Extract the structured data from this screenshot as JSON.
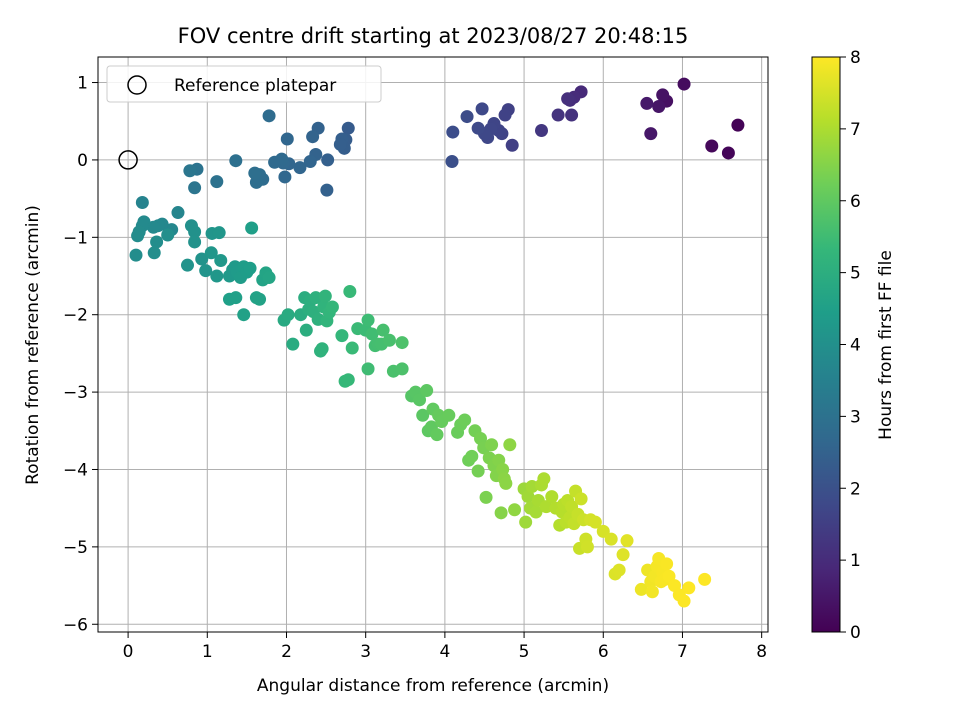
{
  "chart_data": {
    "type": "scatter",
    "title": "FOV centre drift starting at 2023/08/27 20:48:15",
    "xlabel": "Angular distance from reference (arcmin)",
    "ylabel": "Rotation from reference (arcmin)",
    "xlim": [
      -0.38,
      8.08
    ],
    "ylim": [
      -6.1,
      1.33
    ],
    "xticks": [
      0,
      1,
      2,
      3,
      4,
      5,
      6,
      7,
      8
    ],
    "yticks": [
      1,
      0,
      -1,
      -2,
      -3,
      -4,
      -5,
      -6
    ],
    "grid": true,
    "legend": {
      "location": "upper-left",
      "entries": [
        {
          "label": "Reference platepar",
          "marker": "open-circle"
        }
      ]
    },
    "reference_point": {
      "x": 0,
      "y": 0
    },
    "colorbar": {
      "label": "Hours from first FF file",
      "colormap": "viridis",
      "range": [
        0,
        8
      ],
      "ticks": [
        0,
        1,
        2,
        3,
        4,
        5,
        6,
        7,
        8
      ],
      "colors": [
        "#440154",
        "#482878",
        "#3e4989",
        "#31688e",
        "#26828e",
        "#1f9e89",
        "#35b779",
        "#6ece58",
        "#b5de2b",
        "#fde725"
      ]
    },
    "points": [
      {
        "x": 7.7,
        "y": 0.45,
        "h": 0.05
      },
      {
        "x": 7.58,
        "y": 0.09,
        "h": 0.1
      },
      {
        "x": 7.37,
        "y": 0.18,
        "h": 0.15
      },
      {
        "x": 7.02,
        "y": 0.98,
        "h": 0.25
      },
      {
        "x": 6.8,
        "y": 0.76,
        "h": 0.35
      },
      {
        "x": 6.75,
        "y": 0.84,
        "h": 0.4
      },
      {
        "x": 6.7,
        "y": 0.69,
        "h": 0.45
      },
      {
        "x": 6.6,
        "y": 0.34,
        "h": 0.5
      },
      {
        "x": 6.55,
        "y": 0.73,
        "h": 0.55
      },
      {
        "x": 5.72,
        "y": 0.88,
        "h": 0.95
      },
      {
        "x": 5.63,
        "y": 0.81,
        "h": 1.0
      },
      {
        "x": 5.58,
        "y": 0.77,
        "h": 1.05
      },
      {
        "x": 5.55,
        "y": 0.79,
        "h": 1.1
      },
      {
        "x": 5.6,
        "y": 0.58,
        "h": 1.15
      },
      {
        "x": 5.43,
        "y": 0.58,
        "h": 1.2
      },
      {
        "x": 5.22,
        "y": 0.38,
        "h": 1.3
      },
      {
        "x": 4.85,
        "y": 0.19,
        "h": 1.5
      },
      {
        "x": 4.8,
        "y": 0.65,
        "h": 1.55
      },
      {
        "x": 4.76,
        "y": 0.58,
        "h": 1.6
      },
      {
        "x": 4.72,
        "y": 0.34,
        "h": 1.62
      },
      {
        "x": 4.68,
        "y": 0.38,
        "h": 1.65
      },
      {
        "x": 4.62,
        "y": 0.47,
        "h": 1.68
      },
      {
        "x": 4.58,
        "y": 0.4,
        "h": 1.7
      },
      {
        "x": 4.54,
        "y": 0.29,
        "h": 1.72
      },
      {
        "x": 4.5,
        "y": 0.34,
        "h": 1.75
      },
      {
        "x": 4.47,
        "y": 0.66,
        "h": 1.78
      },
      {
        "x": 4.42,
        "y": 0.41,
        "h": 1.8
      },
      {
        "x": 4.28,
        "y": 0.56,
        "h": 1.85
      },
      {
        "x": 4.1,
        "y": 0.36,
        "h": 1.9
      },
      {
        "x": 4.09,
        "y": -0.02,
        "h": 1.95
      },
      {
        "x": 2.78,
        "y": 0.41,
        "h": 2.3
      },
      {
        "x": 2.75,
        "y": 0.26,
        "h": 2.35
      },
      {
        "x": 2.73,
        "y": 0.15,
        "h": 2.38
      },
      {
        "x": 2.7,
        "y": 0.27,
        "h": 2.4
      },
      {
        "x": 2.68,
        "y": 0.2,
        "h": 2.42
      },
      {
        "x": 2.52,
        "y": 0.0,
        "h": 2.45
      },
      {
        "x": 2.51,
        "y": -0.39,
        "h": 2.48
      },
      {
        "x": 2.4,
        "y": 0.41,
        "h": 2.5
      },
      {
        "x": 2.37,
        "y": 0.07,
        "h": 2.52
      },
      {
        "x": 2.33,
        "y": 0.3,
        "h": 2.55
      },
      {
        "x": 2.3,
        "y": -0.02,
        "h": 2.58
      },
      {
        "x": 2.17,
        "y": -0.1,
        "h": 2.6
      },
      {
        "x": 2.03,
        "y": -0.05,
        "h": 2.62
      },
      {
        "x": 2.01,
        "y": 0.27,
        "h": 2.65
      },
      {
        "x": 1.98,
        "y": -0.22,
        "h": 2.68
      },
      {
        "x": 1.96,
        "y": -0.04,
        "h": 2.7
      },
      {
        "x": 1.94,
        "y": 0.01,
        "h": 2.72
      },
      {
        "x": 1.85,
        "y": -0.03,
        "h": 2.75
      },
      {
        "x": 1.78,
        "y": 0.57,
        "h": 2.8
      },
      {
        "x": 1.7,
        "y": -0.25,
        "h": 2.82
      },
      {
        "x": 1.66,
        "y": -0.19,
        "h": 2.85
      },
      {
        "x": 1.62,
        "y": -0.29,
        "h": 2.88
      },
      {
        "x": 1.6,
        "y": -0.17,
        "h": 2.9
      },
      {
        "x": 1.36,
        "y": -0.01,
        "h": 2.95
      },
      {
        "x": 1.12,
        "y": -0.28,
        "h": 3.0
      },
      {
        "x": 0.87,
        "y": -0.12,
        "h": 3.05
      },
      {
        "x": 0.84,
        "y": -0.36,
        "h": 3.1
      },
      {
        "x": 0.78,
        "y": -0.14,
        "h": 3.15
      },
      {
        "x": 0.18,
        "y": -0.55,
        "h": 3.6
      },
      {
        "x": 0.63,
        "y": -0.68,
        "h": 3.65
      },
      {
        "x": 0.55,
        "y": -0.9,
        "h": 3.7
      },
      {
        "x": 0.43,
        "y": -0.83,
        "h": 3.72
      },
      {
        "x": 0.38,
        "y": -0.85,
        "h": 3.75
      },
      {
        "x": 0.32,
        "y": -0.87,
        "h": 3.78
      },
      {
        "x": 0.2,
        "y": -0.8,
        "h": 3.8
      },
      {
        "x": 0.18,
        "y": -0.85,
        "h": 3.82
      },
      {
        "x": 0.14,
        "y": -0.93,
        "h": 3.85
      },
      {
        "x": 0.12,
        "y": -0.98,
        "h": 3.88
      },
      {
        "x": 0.1,
        "y": -1.23,
        "h": 3.9
      },
      {
        "x": 0.36,
        "y": -1.06,
        "h": 3.92
      },
      {
        "x": 0.33,
        "y": -1.2,
        "h": 3.95
      },
      {
        "x": 0.5,
        "y": -0.97,
        "h": 3.97
      },
      {
        "x": 0.8,
        "y": -0.85,
        "h": 4.0
      },
      {
        "x": 0.84,
        "y": -0.93,
        "h": 4.02
      },
      {
        "x": 0.84,
        "y": -1.06,
        "h": 4.05
      },
      {
        "x": 0.75,
        "y": -1.36,
        "h": 4.08
      },
      {
        "x": 0.93,
        "y": -1.28,
        "h": 4.1
      },
      {
        "x": 0.98,
        "y": -1.43,
        "h": 4.12
      },
      {
        "x": 1.06,
        "y": -0.95,
        "h": 4.15
      },
      {
        "x": 1.15,
        "y": -0.94,
        "h": 4.18
      },
      {
        "x": 1.05,
        "y": -1.2,
        "h": 4.2
      },
      {
        "x": 1.12,
        "y": -1.5,
        "h": 4.22
      },
      {
        "x": 1.17,
        "y": -1.3,
        "h": 4.25
      },
      {
        "x": 1.28,
        "y": -1.5,
        "h": 4.28
      },
      {
        "x": 1.32,
        "y": -1.42,
        "h": 4.3
      },
      {
        "x": 1.35,
        "y": -1.38,
        "h": 4.32
      },
      {
        "x": 1.38,
        "y": -1.45,
        "h": 4.35
      },
      {
        "x": 1.42,
        "y": -1.52,
        "h": 4.38
      },
      {
        "x": 1.46,
        "y": -1.38,
        "h": 4.4
      },
      {
        "x": 1.5,
        "y": -1.45,
        "h": 4.42
      },
      {
        "x": 1.54,
        "y": -1.4,
        "h": 4.45
      },
      {
        "x": 1.56,
        "y": -0.88,
        "h": 4.48
      },
      {
        "x": 1.28,
        "y": -1.8,
        "h": 4.5
      },
      {
        "x": 1.36,
        "y": -1.78,
        "h": 4.52
      },
      {
        "x": 1.46,
        "y": -2.0,
        "h": 4.55
      },
      {
        "x": 1.62,
        "y": -1.78,
        "h": 4.58
      },
      {
        "x": 1.66,
        "y": -1.8,
        "h": 4.6
      },
      {
        "x": 1.7,
        "y": -1.55,
        "h": 4.62
      },
      {
        "x": 1.74,
        "y": -1.46,
        "h": 4.65
      },
      {
        "x": 1.78,
        "y": -1.52,
        "h": 4.68
      },
      {
        "x": 1.97,
        "y": -2.07,
        "h": 4.85
      },
      {
        "x": 2.02,
        "y": -2.0,
        "h": 4.88
      },
      {
        "x": 2.08,
        "y": -2.38,
        "h": 4.9
      },
      {
        "x": 2.18,
        "y": -2.0,
        "h": 4.92
      },
      {
        "x": 2.23,
        "y": -1.78,
        "h": 4.95
      },
      {
        "x": 2.25,
        "y": -2.2,
        "h": 4.98
      },
      {
        "x": 2.28,
        "y": -1.93,
        "h": 5.0
      },
      {
        "x": 2.3,
        "y": -1.82,
        "h": 5.02
      },
      {
        "x": 2.34,
        "y": -1.96,
        "h": 5.05
      },
      {
        "x": 2.37,
        "y": -1.78,
        "h": 5.08
      },
      {
        "x": 2.4,
        "y": -2.06,
        "h": 5.1
      },
      {
        "x": 2.43,
        "y": -2.47,
        "h": 5.12
      },
      {
        "x": 2.45,
        "y": -2.44,
        "h": 5.15
      },
      {
        "x": 2.47,
        "y": -1.9,
        "h": 5.18
      },
      {
        "x": 2.49,
        "y": -1.76,
        "h": 5.2
      },
      {
        "x": 2.51,
        "y": -2.08,
        "h": 5.22
      },
      {
        "x": 2.54,
        "y": -1.97,
        "h": 5.25
      },
      {
        "x": 2.58,
        "y": -1.9,
        "h": 5.28
      },
      {
        "x": 2.7,
        "y": -2.27,
        "h": 5.3
      },
      {
        "x": 2.74,
        "y": -2.86,
        "h": 5.32
      },
      {
        "x": 2.78,
        "y": -2.84,
        "h": 5.35
      },
      {
        "x": 2.8,
        "y": -1.7,
        "h": 5.38
      },
      {
        "x": 2.83,
        "y": -2.43,
        "h": 5.4
      },
      {
        "x": 2.9,
        "y": -2.18,
        "h": 5.42
      },
      {
        "x": 3.0,
        "y": -2.2,
        "h": 5.45
      },
      {
        "x": 3.03,
        "y": -2.07,
        "h": 5.48
      },
      {
        "x": 3.03,
        "y": -2.7,
        "h": 5.5
      },
      {
        "x": 3.08,
        "y": -2.25,
        "h": 5.52
      },
      {
        "x": 3.12,
        "y": -2.4,
        "h": 5.55
      },
      {
        "x": 3.16,
        "y": -2.38,
        "h": 5.58
      },
      {
        "x": 3.2,
        "y": -2.38,
        "h": 5.6
      },
      {
        "x": 3.22,
        "y": -2.2,
        "h": 5.62
      },
      {
        "x": 3.3,
        "y": -2.33,
        "h": 5.65
      },
      {
        "x": 3.35,
        "y": -2.73,
        "h": 5.68
      },
      {
        "x": 3.46,
        "y": -2.7,
        "h": 5.7
      },
      {
        "x": 3.46,
        "y": -2.36,
        "h": 5.72
      },
      {
        "x": 3.58,
        "y": -3.05,
        "h": 5.85
      },
      {
        "x": 3.63,
        "y": -3.0,
        "h": 5.88
      },
      {
        "x": 3.68,
        "y": -3.1,
        "h": 5.9
      },
      {
        "x": 3.72,
        "y": -3.3,
        "h": 5.92
      },
      {
        "x": 3.77,
        "y": -2.98,
        "h": 5.95
      },
      {
        "x": 3.79,
        "y": -3.5,
        "h": 5.98
      },
      {
        "x": 3.83,
        "y": -3.45,
        "h": 6.0
      },
      {
        "x": 3.85,
        "y": -3.22,
        "h": 6.02
      },
      {
        "x": 3.9,
        "y": -3.55,
        "h": 6.05
      },
      {
        "x": 3.92,
        "y": -3.3,
        "h": 6.08
      },
      {
        "x": 3.96,
        "y": -3.38,
        "h": 6.1
      },
      {
        "x": 4.05,
        "y": -3.3,
        "h": 6.12
      },
      {
        "x": 4.16,
        "y": -3.52,
        "h": 6.15
      },
      {
        "x": 4.2,
        "y": -3.42,
        "h": 6.18
      },
      {
        "x": 4.25,
        "y": -3.36,
        "h": 6.2
      },
      {
        "x": 4.3,
        "y": -3.88,
        "h": 6.22
      },
      {
        "x": 4.34,
        "y": -3.83,
        "h": 6.25
      },
      {
        "x": 4.38,
        "y": -3.5,
        "h": 6.28
      },
      {
        "x": 4.42,
        "y": -4.02,
        "h": 6.3
      },
      {
        "x": 4.45,
        "y": -3.6,
        "h": 6.32
      },
      {
        "x": 4.49,
        "y": -3.72,
        "h": 6.35
      },
      {
        "x": 4.52,
        "y": -4.36,
        "h": 6.38
      },
      {
        "x": 4.56,
        "y": -3.85,
        "h": 6.4
      },
      {
        "x": 4.59,
        "y": -3.68,
        "h": 6.42
      },
      {
        "x": 4.62,
        "y": -3.95,
        "h": 6.45
      },
      {
        "x": 4.65,
        "y": -4.08,
        "h": 6.48
      },
      {
        "x": 4.68,
        "y": -3.88,
        "h": 6.5
      },
      {
        "x": 4.71,
        "y": -4.56,
        "h": 6.52
      },
      {
        "x": 4.73,
        "y": -4.0,
        "h": 6.55
      },
      {
        "x": 4.75,
        "y": -4.12,
        "h": 6.58
      },
      {
        "x": 4.77,
        "y": -4.18,
        "h": 6.6
      },
      {
        "x": 4.82,
        "y": -3.68,
        "h": 6.62
      },
      {
        "x": 4.88,
        "y": -4.52,
        "h": 6.65
      },
      {
        "x": 5.0,
        "y": -4.25,
        "h": 6.8
      },
      {
        "x": 5.02,
        "y": -4.68,
        "h": 6.82
      },
      {
        "x": 5.05,
        "y": -4.35,
        "h": 6.85
      },
      {
        "x": 5.08,
        "y": -4.5,
        "h": 6.88
      },
      {
        "x": 5.1,
        "y": -4.22,
        "h": 6.9
      },
      {
        "x": 5.15,
        "y": -4.55,
        "h": 6.92
      },
      {
        "x": 5.18,
        "y": -4.4,
        "h": 6.95
      },
      {
        "x": 5.22,
        "y": -4.2,
        "h": 6.98
      },
      {
        "x": 5.25,
        "y": -4.12,
        "h": 7.0
      },
      {
        "x": 5.28,
        "y": -4.48,
        "h": 7.02
      },
      {
        "x": 5.35,
        "y": -4.35,
        "h": 7.05
      },
      {
        "x": 5.4,
        "y": -4.5,
        "h": 7.08
      },
      {
        "x": 5.45,
        "y": -4.72,
        "h": 7.1
      },
      {
        "x": 5.48,
        "y": -4.55,
        "h": 7.12
      },
      {
        "x": 5.5,
        "y": -4.45,
        "h": 7.15
      },
      {
        "x": 5.53,
        "y": -4.68,
        "h": 7.18
      },
      {
        "x": 5.55,
        "y": -4.4,
        "h": 7.2
      },
      {
        "x": 5.58,
        "y": -4.62,
        "h": 7.22
      },
      {
        "x": 5.6,
        "y": -4.48,
        "h": 7.25
      },
      {
        "x": 5.63,
        "y": -4.7,
        "h": 7.28
      },
      {
        "x": 5.65,
        "y": -4.28,
        "h": 7.3
      },
      {
        "x": 5.68,
        "y": -4.58,
        "h": 7.32
      },
      {
        "x": 5.7,
        "y": -5.02,
        "h": 7.35
      },
      {
        "x": 5.72,
        "y": -4.38,
        "h": 7.38
      },
      {
        "x": 5.75,
        "y": -4.65,
        "h": 7.4
      },
      {
        "x": 5.78,
        "y": -4.9,
        "h": 7.42
      },
      {
        "x": 5.8,
        "y": -5.0,
        "h": 7.45
      },
      {
        "x": 5.84,
        "y": -4.65,
        "h": 7.48
      },
      {
        "x": 5.9,
        "y": -4.68,
        "h": 7.5
      },
      {
        "x": 6.0,
        "y": -4.8,
        "h": 7.52
      },
      {
        "x": 6.1,
        "y": -4.9,
        "h": 7.55
      },
      {
        "x": 6.15,
        "y": -5.35,
        "h": 7.58
      },
      {
        "x": 6.2,
        "y": -5.3,
        "h": 7.6
      },
      {
        "x": 6.25,
        "y": -5.1,
        "h": 7.62
      },
      {
        "x": 6.3,
        "y": -4.92,
        "h": 7.65
      },
      {
        "x": 6.48,
        "y": -5.55,
        "h": 7.8
      },
      {
        "x": 6.56,
        "y": -5.3,
        "h": 7.82
      },
      {
        "x": 6.6,
        "y": -5.45,
        "h": 7.85
      },
      {
        "x": 6.62,
        "y": -5.58,
        "h": 7.87
      },
      {
        "x": 6.65,
        "y": -5.38,
        "h": 7.88
      },
      {
        "x": 6.68,
        "y": -5.25,
        "h": 7.9
      },
      {
        "x": 6.7,
        "y": -5.15,
        "h": 7.91
      },
      {
        "x": 6.73,
        "y": -5.45,
        "h": 7.92
      },
      {
        "x": 6.75,
        "y": -5.33,
        "h": 7.93
      },
      {
        "x": 6.78,
        "y": -5.42,
        "h": 7.94
      },
      {
        "x": 6.8,
        "y": -5.22,
        "h": 7.95
      },
      {
        "x": 6.83,
        "y": -5.38,
        "h": 7.96
      },
      {
        "x": 6.9,
        "y": -5.5,
        "h": 7.97
      },
      {
        "x": 6.96,
        "y": -5.62,
        "h": 7.98
      },
      {
        "x": 7.02,
        "y": -5.7,
        "h": 7.99
      },
      {
        "x": 7.08,
        "y": -5.53,
        "h": 8.0
      },
      {
        "x": 7.28,
        "y": -5.42,
        "h": 8.0
      }
    ]
  }
}
